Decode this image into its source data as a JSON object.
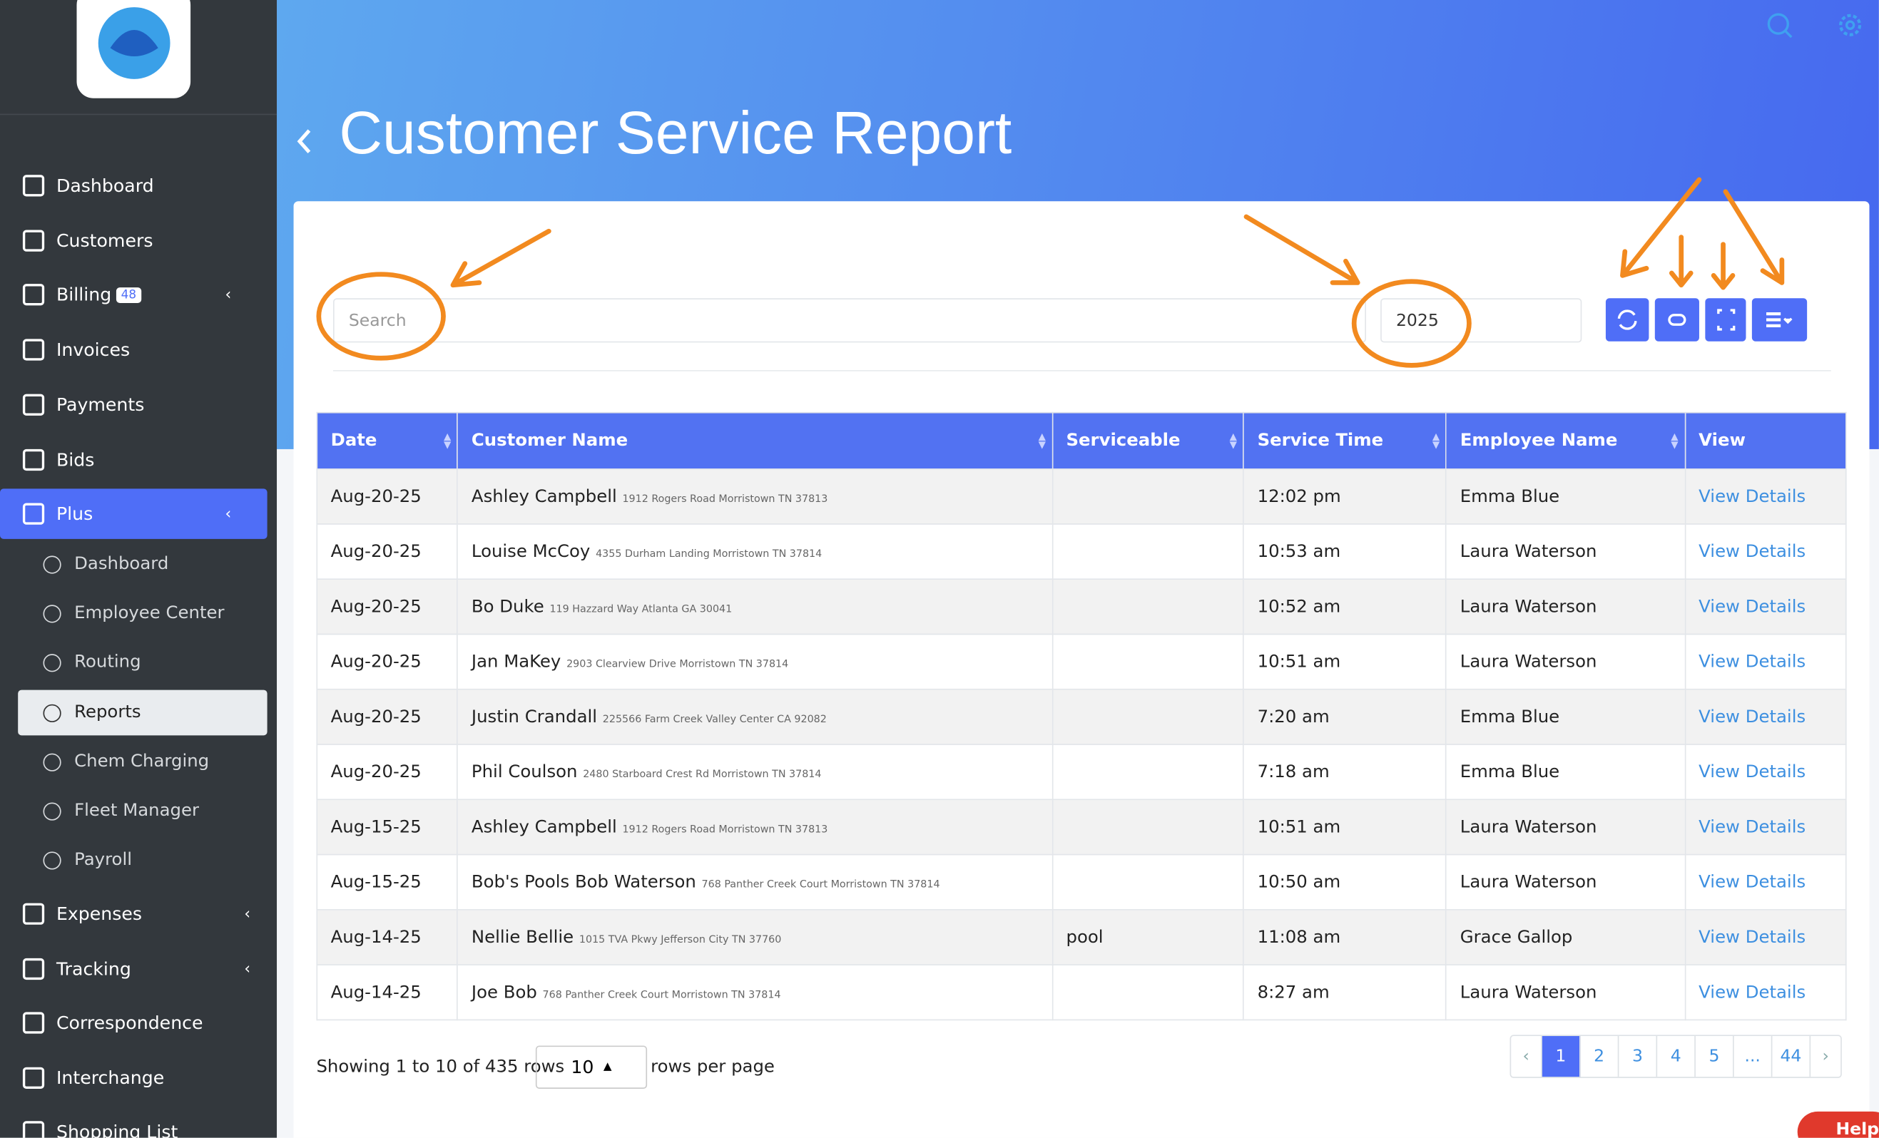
{
  "sidebar": {
    "items": [
      {
        "label": "Dashboard"
      },
      {
        "label": "Customers"
      },
      {
        "label": "Billing",
        "badge": "48"
      },
      {
        "label": "Invoices"
      },
      {
        "label": "Payments"
      },
      {
        "label": "Bids"
      },
      {
        "label": "Plus"
      }
    ],
    "sub_items": [
      {
        "label": "Dashboard"
      },
      {
        "label": "Employee Center"
      },
      {
        "label": "Routing"
      },
      {
        "label": "Reports"
      },
      {
        "label": "Chem Charging"
      },
      {
        "label": "Fleet Manager"
      },
      {
        "label": "Payroll"
      }
    ],
    "items_after": [
      {
        "label": "Expenses"
      },
      {
        "label": "Tracking"
      },
      {
        "label": "Correspondence"
      },
      {
        "label": "Interchange"
      },
      {
        "label": "Shopping List"
      }
    ]
  },
  "header": {
    "title": "Customer Service Report"
  },
  "toolbar": {
    "search_placeholder": "Search",
    "year": "2025"
  },
  "table": {
    "columns": [
      "Date",
      "Customer Name",
      "Serviceable",
      "Service Time",
      "Employee Name",
      "View"
    ],
    "rows": [
      [
        "Aug-20-25",
        "Ashley Campbell",
        "1912 Rogers Road Morristown TN 37813",
        "",
        "12:02 pm",
        "Emma Blue",
        "View Details"
      ],
      [
        "Aug-20-25",
        "Louise McCoy",
        "4355 Durham Landing Morristown TN 37814",
        "",
        "10:53 am",
        "Laura Waterson",
        "View Details"
      ],
      [
        "Aug-20-25",
        "Bo Duke",
        "119 Hazzard Way Atlanta GA 30041",
        "",
        "10:52 am",
        "Laura Waterson",
        "View Details"
      ],
      [
        "Aug-20-25",
        "Jan MaKey",
        "2903 Clearview Drive Morristown TN 37814",
        "",
        "10:51 am",
        "Laura Waterson",
        "View Details"
      ],
      [
        "Aug-20-25",
        "Justin Crandall",
        "225566 Farm Creek Valley Center CA 92082",
        "",
        "7:20 am",
        "Emma Blue",
        "View Details"
      ],
      [
        "Aug-20-25",
        "Phil Coulson",
        "2480 Starboard Crest Rd Morristown TN 37814",
        "",
        "7:18 am",
        "Emma Blue",
        "View Details"
      ],
      [
        "Aug-15-25",
        "Ashley Campbell",
        "1912 Rogers Road Morristown TN 37813",
        "",
        "10:51 am",
        "Laura Waterson",
        "View Details"
      ],
      [
        "Aug-15-25",
        "Bob's Pools Bob Waterson",
        "768 Panther Creek Court Morristown TN 37814",
        "",
        "10:50 am",
        "Laura Waterson",
        "View Details"
      ],
      [
        "Aug-14-25",
        "Nellie Bellie",
        "1015 TVA Pkwy Jefferson City TN 37760",
        "pool",
        "11:08 am",
        "Grace Gallop",
        "View Details"
      ],
      [
        "Aug-14-25",
        "Joe Bob",
        "768 Panther Creek Court Morristown TN 37814",
        "",
        "8:27 am",
        "Laura Waterson",
        "View Details"
      ]
    ]
  },
  "footer": {
    "showing": "Showing 1 to 10 of 435 rows",
    "page_size": "10",
    "rows_per_page": "rows per page"
  },
  "pagination": [
    "‹",
    "1",
    "2",
    "3",
    "4",
    "5",
    "...",
    "44",
    "›"
  ],
  "help": "Help"
}
